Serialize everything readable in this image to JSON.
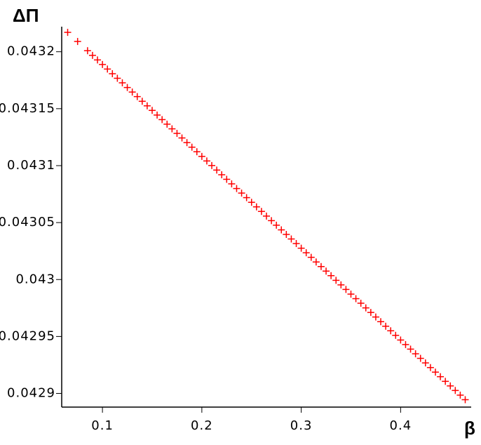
{
  "chart_data": {
    "type": "scatter",
    "marker": "+",
    "color": "#ff0000",
    "x_label": "β",
    "y_label": "ΔΠ",
    "x": [
      0.065,
      0.075,
      0.085,
      0.09,
      0.095,
      0.1,
      0.105,
      0.11,
      0.115,
      0.12,
      0.125,
      0.13,
      0.135,
      0.14,
      0.145,
      0.15,
      0.155,
      0.16,
      0.165,
      0.17,
      0.175,
      0.18,
      0.185,
      0.19,
      0.195,
      0.2,
      0.205,
      0.21,
      0.215,
      0.22,
      0.225,
      0.23,
      0.235,
      0.24,
      0.245,
      0.25,
      0.255,
      0.26,
      0.265,
      0.27,
      0.275,
      0.28,
      0.285,
      0.29,
      0.295,
      0.3,
      0.305,
      0.31,
      0.315,
      0.32,
      0.325,
      0.33,
      0.335,
      0.34,
      0.345,
      0.35,
      0.355,
      0.36,
      0.365,
      0.37,
      0.375,
      0.38,
      0.385,
      0.39,
      0.395,
      0.4,
      0.405,
      0.41,
      0.415,
      0.42,
      0.425,
      0.43,
      0.435,
      0.44,
      0.445,
      0.45,
      0.455,
      0.46,
      0.465
    ],
    "values": [
      0.043217,
      0.043209,
      0.0432009,
      0.0431968,
      0.0431928,
      0.0431888,
      0.0431848,
      0.0431807,
      0.0431767,
      0.0431727,
      0.0431686,
      0.0431646,
      0.0431606,
      0.0431565,
      0.0431525,
      0.0431485,
      0.0431444,
      0.0431404,
      0.0431364,
      0.0431323,
      0.0431283,
      0.0431243,
      0.0431202,
      0.0431162,
      0.0431122,
      0.0431081,
      0.0431041,
      0.0431001,
      0.0430961,
      0.043092,
      0.043088,
      0.043084,
      0.0430799,
      0.0430759,
      0.0430719,
      0.0430678,
      0.0430638,
      0.0430598,
      0.0430557,
      0.0430517,
      0.0430477,
      0.0430436,
      0.0430396,
      0.0430356,
      0.0430316,
      0.0430275,
      0.0430235,
      0.0430195,
      0.0430154,
      0.0430114,
      0.0430074,
      0.0430034,
      0.0429993,
      0.0429953,
      0.0429913,
      0.0429872,
      0.0429832,
      0.0429792,
      0.0429751,
      0.0429711,
      0.0429671,
      0.042963,
      0.042959,
      0.042955,
      0.042951,
      0.0429469,
      0.0429429,
      0.0429389,
      0.0429348,
      0.0429308,
      0.0429268,
      0.0429227,
      0.0429187,
      0.0429147,
      0.0429106,
      0.0429066,
      0.0429026,
      0.0428985,
      0.0428945
    ],
    "xlim": [
      0.059,
      0.471
    ],
    "xticks": [
      0.1,
      0.2,
      0.3,
      0.4
    ],
    "ylim": [
      0.042888,
      0.043222
    ],
    "yticks": [
      0.0429,
      0.04295,
      0.043,
      0.04305,
      0.0431,
      0.04315,
      0.0432
    ]
  }
}
